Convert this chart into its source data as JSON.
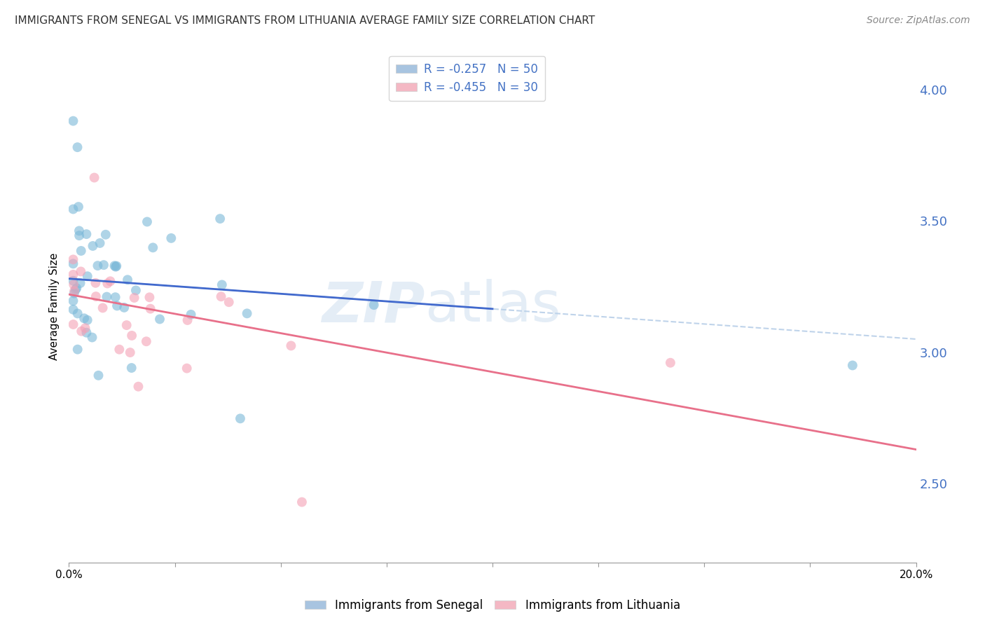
{
  "title": "IMMIGRANTS FROM SENEGAL VS IMMIGRANTS FROM LITHUANIA AVERAGE FAMILY SIZE CORRELATION CHART",
  "source": "Source: ZipAtlas.com",
  "ylabel": "Average Family Size",
  "yticks_right": [
    2.5,
    3.0,
    3.5,
    4.0
  ],
  "xlim": [
    0.0,
    0.2
  ],
  "ylim": [
    2.2,
    4.15
  ],
  "watermark": "ZIPatlas",
  "legend_entry_1": "R = -0.257   N = 50",
  "legend_entry_2": "R = -0.455   N = 30",
  "legend_color_1": "#a8c4e0",
  "legend_color_2": "#f4b8c4",
  "bottom_legend_1": "Immigrants from Senegal",
  "bottom_legend_2": "Immigrants from Lithuania",
  "senegal_color": "#7ab8d8",
  "lithuania_color": "#f4a0b5",
  "senegal_line_color": "#4169CD",
  "lithuania_line_color": "#E8708A",
  "dashed_line_color": "#b8cfe8",
  "title_fontsize": 11,
  "source_fontsize": 10,
  "axis_label_fontsize": 11,
  "tick_fontsize": 11,
  "right_tick_color": "#4472c4",
  "scatter_alpha": 0.6,
  "scatter_size": 100
}
